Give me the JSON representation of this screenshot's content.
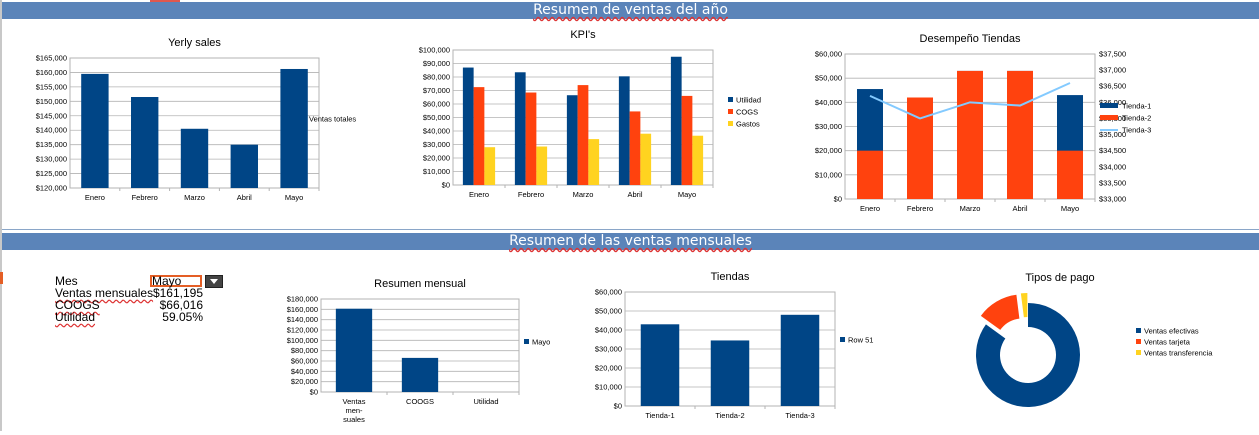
{
  "banners": {
    "top": "Resumen de ventas del año",
    "bottom": "Resumen de las ventas mensuales"
  },
  "summary": {
    "month_label": "Mes",
    "month_value": "Mayo",
    "rows": [
      {
        "label": "Ventas mensuales",
        "value": "$161,195"
      },
      {
        "label": "COOGS",
        "value": "$66,016"
      },
      {
        "label": "Utilidad",
        "value": "59.05%"
      }
    ]
  },
  "colors": {
    "blue": "#004586",
    "orange": "#ff420e",
    "yellow": "#ffd320",
    "lightblue": "#83caff",
    "banner": "#5b84b9"
  },
  "chart_data": [
    {
      "id": "yearly",
      "type": "bar",
      "title": "Yerly sales",
      "categories": [
        "Enero",
        "Febrero",
        "Marzo",
        "Abril",
        "Mayo"
      ],
      "series": [
        {
          "name": "Ventas totales",
          "values": [
            159500,
            151500,
            140500,
            135000,
            161200
          ],
          "color": "#004586"
        }
      ],
      "y_ticks": [
        "$120,000",
        "$125,000",
        "$130,000",
        "$135,000",
        "$140,000",
        "$145,000",
        "$150,000",
        "$155,000",
        "$160,000",
        "$165,000"
      ],
      "ylim": [
        120000,
        165000
      ],
      "legend": "right"
    },
    {
      "id": "kpi",
      "type": "bar",
      "title": "KPI's",
      "categories": [
        "Enero",
        "Febrero",
        "Marzo",
        "Abril",
        "Mayo"
      ],
      "series": [
        {
          "name": "Utilidad",
          "values": [
            87000,
            83500,
            66500,
            80500,
            95000
          ],
          "color": "#004586"
        },
        {
          "name": "COGS",
          "values": [
            72500,
            68500,
            74000,
            54500,
            66000
          ],
          "color": "#ff420e"
        },
        {
          "name": "Gastos",
          "values": [
            28000,
            28500,
            34000,
            38000,
            36500
          ],
          "color": "#ffd320"
        }
      ],
      "y_ticks": [
        "$0",
        "$10,000",
        "$20,000",
        "$30,000",
        "$40,000",
        "$50,000",
        "$60,000",
        "$70,000",
        "$80,000",
        "$90,000",
        "$100,000"
      ],
      "ylim": [
        0,
        100000
      ],
      "legend": "right"
    },
    {
      "id": "tiendas_perf",
      "type": "bar",
      "title": "Desempeño Tiendas",
      "categories": [
        "Enero",
        "Febrero",
        "Marzo",
        "Abril",
        "Mayo"
      ],
      "series": [
        {
          "name": "Tienda-1",
          "values": [
            45500,
            42000,
            53000,
            53000,
            43000
          ],
          "color": "#004586"
        },
        {
          "name": "Tienda-2",
          "values": [
            20000,
            42000,
            53000,
            53000,
            20000
          ],
          "color": "#ff420e"
        },
        {
          "name": "Tienda-3",
          "values": [
            36200,
            35500,
            36000,
            35900,
            36600
          ],
          "color": "#83caff",
          "kind": "line",
          "axis": "secondary"
        }
      ],
      "y_ticks": [
        "$0",
        "$10,000",
        "$20,000",
        "$30,000",
        "$40,000",
        "$50,000",
        "$60,000"
      ],
      "ylim": [
        0,
        60000
      ],
      "y2_ticks": [
        "$33,000",
        "$33,500",
        "$34,000",
        "$34,500",
        "$35,000",
        "$35,500",
        "$36,000",
        "$36,500",
        "$37,000",
        "$37,500"
      ],
      "y2lim": [
        33000,
        37500
      ],
      "legend": "right"
    },
    {
      "id": "resumen",
      "type": "bar",
      "title": "Resumen mensual",
      "categories": [
        "Ventas men- suales",
        "COOGS",
        "Utilidad"
      ],
      "series": [
        {
          "name": "Mayo",
          "values": [
            161195,
            66016,
            0
          ],
          "color": "#004586"
        }
      ],
      "y_ticks": [
        "$0",
        "$20,000",
        "$40,000",
        "$60,000",
        "$80,000",
        "$100,000",
        "$120,000",
        "$140,000",
        "$160,000",
        "$180,000"
      ],
      "ylim": [
        0,
        180000
      ],
      "legend": "right"
    },
    {
      "id": "tiendas",
      "type": "bar",
      "title": "Tiendas",
      "categories": [
        "Tienda-1",
        "Tienda-2",
        "Tienda-3"
      ],
      "series": [
        {
          "name": "Row 51",
          "values": [
            43000,
            34500,
            48000
          ],
          "color": "#004586"
        }
      ],
      "y_ticks": [
        "$0",
        "$10,000",
        "$20,000",
        "$30,000",
        "$40,000",
        "$50,000",
        "$60,000"
      ],
      "ylim": [
        0,
        60000
      ],
      "legend": "right"
    },
    {
      "id": "pagos",
      "type": "pie",
      "title": "Tipos de pago",
      "categories": [
        "Ventas efectivas",
        "Ventas tarjeta",
        "Ventas transferencia"
      ],
      "values": [
        85,
        13,
        2
      ],
      "colors": [
        "#004586",
        "#ff420e",
        "#ffd320"
      ],
      "legend": "right"
    }
  ]
}
